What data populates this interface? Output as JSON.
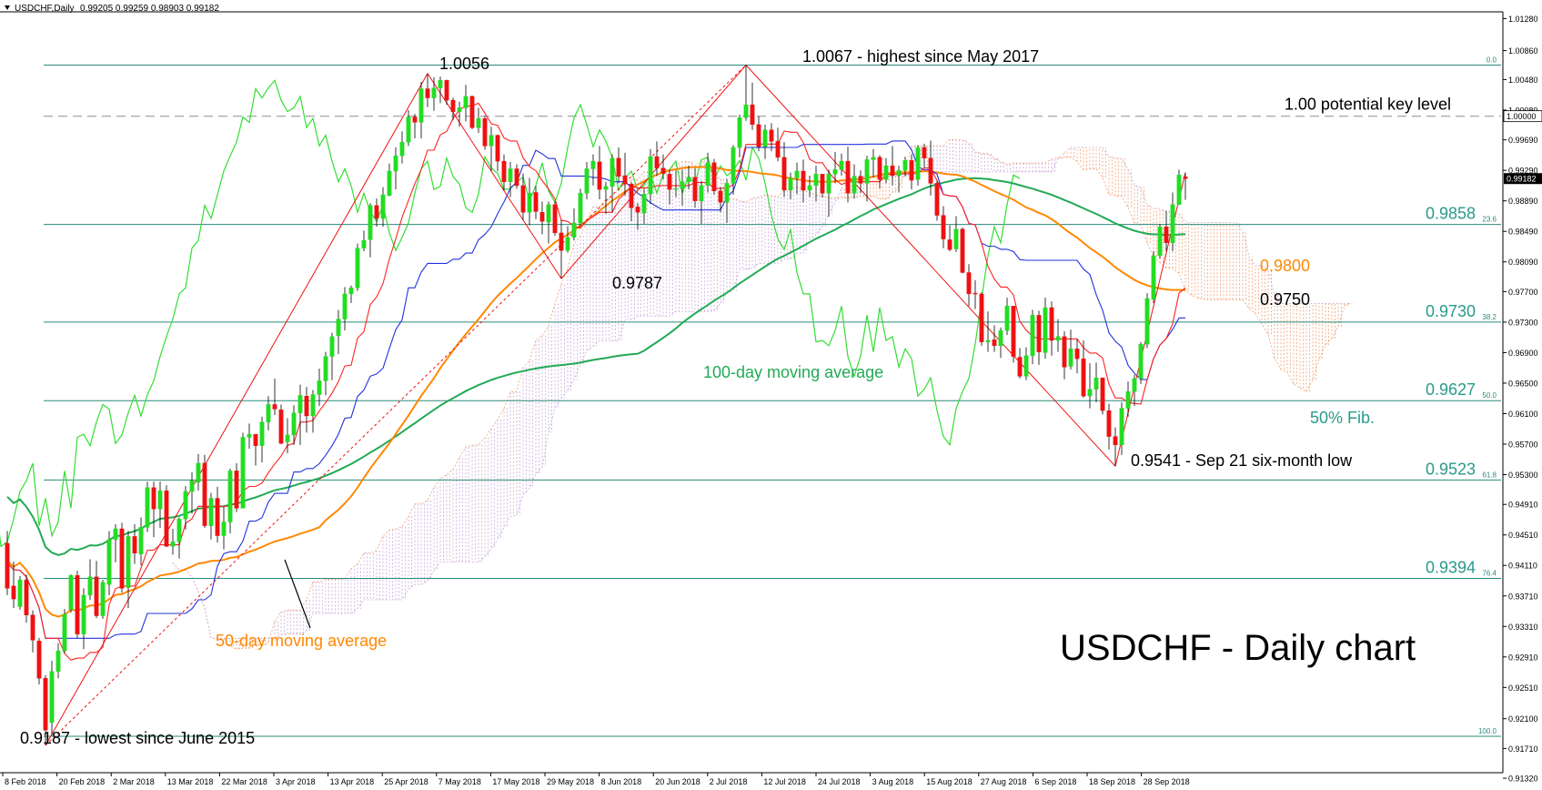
{
  "header": {
    "symbol": "USDCHF,Daily",
    "ohlc": "0.99205 0.99259 0.98903 0.99182",
    "arrow_icon": "triangle-down-icon"
  },
  "chart_data": {
    "type": "candlestick",
    "title": "USDCHF - Daily chart",
    "x_ticks": [
      "8 Feb 2018",
      "20 Feb 2018",
      "2 Mar 2018",
      "13 Mar 2018",
      "22 Mar 2018",
      "3 Apr 2018",
      "13 Apr 2018",
      "25 Apr 2018",
      "7 May 2018",
      "17 May 2018",
      "29 May 2018",
      "8 Jun 2018",
      "20 Jun 2018",
      "2 Jul 2018",
      "12 Jul 2018",
      "24 Jul 2018",
      "3 Aug 2018",
      "15 Aug 2018",
      "27 Aug 2018",
      "6 Sep 2018",
      "18 Sep 2018",
      "28 Sep 2018"
    ],
    "y_ticks": [
      "1.01280",
      "1.00860",
      "1.00480",
      "1.00080",
      "0.99690",
      "0.99290",
      "0.98890",
      "0.98490",
      "0.98090",
      "0.97700",
      "0.97300",
      "0.96900",
      "0.96500",
      "0.96100",
      "0.95700",
      "0.95300",
      "0.94910",
      "0.94510",
      "0.94110",
      "0.93710",
      "0.93310",
      "0.92910",
      "0.92510",
      "0.92100",
      "0.91710",
      "0.91320"
    ],
    "ylim": [
      0.9132,
      1.0168
    ],
    "current_price": "0.99182",
    "key_level_box": "1.00000",
    "colors": {
      "bull": "#22dd22",
      "bear": "#ee1111",
      "ma50": "#ff8800",
      "ma100": "#22aa55",
      "tenkan": "#ff2222",
      "kijun": "#2233dd",
      "chikou": "#33dd33",
      "fib": "#2a8a7a",
      "annotation_fib": "#2a9a8a"
    },
    "fib_levels": [
      {
        "pct": "0.0",
        "price": 1.0067,
        "label": ""
      },
      {
        "pct": "23.6",
        "price": 0.9858,
        "label": "0.9858"
      },
      {
        "pct": "38.2",
        "price": 0.973,
        "label": "0.9730"
      },
      {
        "pct": "50.0",
        "price": 0.9627,
        "label": "0.9627"
      },
      {
        "pct": "61.8",
        "price": 0.9523,
        "label": "0.9523"
      },
      {
        "pct": "76.4",
        "price": 0.9394,
        "label": "0.9394"
      },
      {
        "pct": "100.0",
        "price": 0.9187,
        "label": ""
      }
    ],
    "key_level": {
      "price": 1.0,
      "label": "1.00 potential key level"
    },
    "annotations": {
      "low_2015": "0.9187 - lowest since June 2015",
      "high_may": "1.0056",
      "high_2017": "1.0067 - highest since May 2017",
      "low_jun": "0.9787",
      "low_sep": "0.9541 -  Sep 21 six-month low",
      "ma50_value": "0.9800",
      "kijun_value": "0.9750",
      "fib50": "50% Fib.",
      "ma100_label": "100-day moving average",
      "ma50_label": "50-day moving average"
    },
    "candles": [
      [
        0.944,
        0.9456,
        0.9372,
        0.9381
      ],
      [
        0.9384,
        0.9416,
        0.9355,
        0.9367
      ],
      [
        0.9357,
        0.9397,
        0.9353,
        0.9392
      ],
      [
        0.9392,
        0.9399,
        0.9336,
        0.9346
      ],
      [
        0.9346,
        0.9352,
        0.9297,
        0.9313
      ],
      [
        0.9312,
        0.9316,
        0.9255,
        0.9263
      ],
      [
        0.9263,
        0.9267,
        0.9175,
        0.9195
      ],
      [
        0.9205,
        0.9286,
        0.9188,
        0.9272
      ],
      [
        0.9272,
        0.9309,
        0.9263,
        0.9299
      ],
      [
        0.9299,
        0.9354,
        0.9296,
        0.9347
      ],
      [
        0.9353,
        0.9399,
        0.9349,
        0.9398
      ],
      [
        0.9398,
        0.9404,
        0.9316,
        0.9321
      ],
      [
        0.9321,
        0.9381,
        0.9301,
        0.9372
      ],
      [
        0.9372,
        0.9419,
        0.9366,
        0.9396
      ],
      [
        0.9396,
        0.9417,
        0.9342,
        0.9345
      ],
      [
        0.9345,
        0.9392,
        0.9341,
        0.9389
      ],
      [
        0.9386,
        0.9456,
        0.9372,
        0.9445
      ],
      [
        0.9445,
        0.9465,
        0.9415,
        0.9459
      ],
      [
        0.9459,
        0.9467,
        0.9375,
        0.9381
      ],
      [
        0.9382,
        0.9456,
        0.9355,
        0.9449
      ],
      [
        0.9449,
        0.9465,
        0.9413,
        0.9427
      ],
      [
        0.9426,
        0.9474,
        0.9411,
        0.9461
      ],
      [
        0.9461,
        0.9521,
        0.9455,
        0.9513
      ],
      [
        0.9513,
        0.9521,
        0.9448,
        0.9485
      ],
      [
        0.9485,
        0.9521,
        0.946,
        0.9509
      ],
      [
        0.9509,
        0.9516,
        0.9435,
        0.9436
      ],
      [
        0.9436,
        0.9459,
        0.9425,
        0.9442
      ],
      [
        0.9442,
        0.9474,
        0.942,
        0.9472
      ],
      [
        0.9472,
        0.9515,
        0.9458,
        0.9508
      ],
      [
        0.9508,
        0.9533,
        0.9479,
        0.9522
      ],
      [
        0.952,
        0.9557,
        0.9509,
        0.9545
      ],
      [
        0.9545,
        0.9556,
        0.946,
        0.9463
      ],
      [
        0.9463,
        0.9506,
        0.9445,
        0.9499
      ],
      [
        0.9499,
        0.9514,
        0.9441,
        0.945
      ],
      [
        0.945,
        0.9488,
        0.9432,
        0.9468
      ],
      [
        0.9468,
        0.9538,
        0.9453,
        0.9535
      ],
      [
        0.9535,
        0.9545,
        0.9481,
        0.9486
      ],
      [
        0.9486,
        0.9585,
        0.9486,
        0.9579
      ],
      [
        0.9579,
        0.9597,
        0.9564,
        0.9583
      ],
      [
        0.9583,
        0.9583,
        0.9542,
        0.9568
      ],
      [
        0.9568,
        0.9606,
        0.9546,
        0.9599
      ],
      [
        0.9599,
        0.9633,
        0.9588,
        0.9622
      ],
      [
        0.9622,
        0.9656,
        0.9608,
        0.9616
      ],
      [
        0.9615,
        0.9622,
        0.957,
        0.9571
      ],
      [
        0.9573,
        0.9604,
        0.9558,
        0.9582
      ],
      [
        0.9582,
        0.9621,
        0.9569,
        0.9611
      ],
      [
        0.9611,
        0.9648,
        0.9569,
        0.9634
      ],
      [
        0.9633,
        0.9645,
        0.9585,
        0.9607
      ],
      [
        0.9607,
        0.9641,
        0.9585,
        0.9635
      ],
      [
        0.9635,
        0.9669,
        0.962,
        0.9653
      ],
      [
        0.9653,
        0.9691,
        0.9634,
        0.9685
      ],
      [
        0.9685,
        0.9716,
        0.9654,
        0.9711
      ],
      [
        0.9712,
        0.9746,
        0.9688,
        0.9734
      ],
      [
        0.9734,
        0.9776,
        0.9719,
        0.9767
      ],
      [
        0.9767,
        0.9778,
        0.9755,
        0.9775
      ],
      [
        0.9775,
        0.9833,
        0.9771,
        0.9827
      ],
      [
        0.9827,
        0.985,
        0.9823,
        0.9837
      ],
      [
        0.9838,
        0.9886,
        0.9815,
        0.9883
      ],
      [
        0.9883,
        0.9892,
        0.9855,
        0.9866
      ],
      [
        0.9866,
        0.9907,
        0.9855,
        0.9897
      ],
      [
        0.9896,
        0.9938,
        0.9895,
        0.9928
      ],
      [
        0.9928,
        0.9959,
        0.9904,
        0.9948
      ],
      [
        0.9948,
        0.998,
        0.9938,
        0.9966
      ],
      [
        0.9966,
        1.0008,
        0.9961,
        0.9999
      ],
      [
        0.9999,
        1.0003,
        0.9971,
        0.9992
      ],
      [
        0.9992,
        1.0045,
        0.9971,
        1.0036
      ],
      [
        1.0036,
        1.0056,
        1.0012,
        1.0024
      ],
      [
        1.0024,
        1.0051,
        1.0007,
        1.0037
      ],
      [
        1.0037,
        1.0052,
        1.0017,
        1.0047
      ],
      [
        1.0047,
        1.0048,
        1.0015,
        1.0021
      ],
      [
        1.0021,
        1.0024,
        0.9995,
        1.0006
      ],
      [
        1.0006,
        1.0019,
        0.9986,
        1.0011
      ],
      [
        1.0011,
        1.0041,
        0.9993,
        1.0026
      ],
      [
        1.0026,
        1.0027,
        0.9983,
        0.9985
      ],
      [
        0.9985,
        1.0011,
        0.9978,
        0.9997
      ],
      [
        0.9997,
        1.0,
        0.9956,
        0.9961
      ],
      [
        0.9961,
        0.9986,
        0.9928,
        0.9975
      ],
      [
        0.9975,
        0.9976,
        0.9928,
        0.9941
      ],
      [
        0.9941,
        0.995,
        0.9902,
        0.9914
      ],
      [
        0.9914,
        0.994,
        0.9894,
        0.9931
      ],
      [
        0.9931,
        0.9937,
        0.9905,
        0.9909
      ],
      [
        0.9909,
        0.9925,
        0.9864,
        0.9874
      ],
      [
        0.9874,
        0.9919,
        0.9857,
        0.9899
      ],
      [
        0.99,
        0.9908,
        0.9865,
        0.9875
      ],
      [
        0.9874,
        0.9888,
        0.9845,
        0.9862
      ],
      [
        0.9861,
        0.9888,
        0.9833,
        0.9884
      ],
      [
        0.9884,
        0.9888,
        0.9843,
        0.9847
      ],
      [
        0.9847,
        0.9864,
        0.9787,
        0.9824
      ],
      [
        0.9824,
        0.9856,
        0.9821,
        0.9841
      ],
      [
        0.9841,
        0.9879,
        0.9837,
        0.986
      ],
      [
        0.986,
        0.9905,
        0.9855,
        0.9899
      ],
      [
        0.9899,
        0.994,
        0.9891,
        0.9931
      ],
      [
        0.9931,
        0.995,
        0.9909,
        0.9941
      ],
      [
        0.994,
        0.9961,
        0.9891,
        0.9904
      ],
      [
        0.9904,
        0.9914,
        0.9872,
        0.9908
      ],
      [
        0.9908,
        0.995,
        0.9874,
        0.9945
      ],
      [
        0.9945,
        0.9959,
        0.9912,
        0.9921
      ],
      [
        0.9922,
        0.9952,
        0.9896,
        0.9911
      ],
      [
        0.9911,
        0.9914,
        0.9862,
        0.988
      ],
      [
        0.9881,
        0.9886,
        0.9851,
        0.9874
      ],
      [
        0.9873,
        0.9905,
        0.9859,
        0.9898
      ],
      [
        0.9898,
        0.9957,
        0.9885,
        0.9947
      ],
      [
        0.9947,
        0.9967,
        0.9922,
        0.9932
      ],
      [
        0.9932,
        0.995,
        0.9917,
        0.9925
      ],
      [
        0.9924,
        0.993,
        0.9884,
        0.9904
      ],
      [
        0.9904,
        0.9929,
        0.9894,
        0.9905
      ],
      [
        0.9905,
        0.993,
        0.9883,
        0.9914
      ],
      [
        0.9914,
        0.9935,
        0.9904,
        0.992
      ],
      [
        0.992,
        0.9932,
        0.988,
        0.9889
      ],
      [
        0.9889,
        0.9915,
        0.9859,
        0.9909
      ],
      [
        0.9909,
        0.9952,
        0.99,
        0.9939
      ],
      [
        0.9939,
        0.9944,
        0.9897,
        0.9902
      ],
      [
        0.9902,
        0.9907,
        0.9874,
        0.9887
      ],
      [
        0.9887,
        0.9918,
        0.986,
        0.9912
      ],
      [
        0.9912,
        0.9962,
        0.9897,
        0.9959
      ],
      [
        0.9959,
        1.0002,
        0.9946,
        0.9998
      ],
      [
        0.9998,
        1.0067,
        0.9994,
        1.0015
      ],
      [
        1.0015,
        1.0044,
        0.9982,
        0.9989
      ],
      [
        0.9989,
        1.0,
        0.9954,
        0.996
      ],
      [
        0.996,
        0.9989,
        0.9944,
        0.9982
      ],
      [
        0.9982,
        0.9991,
        0.9954,
        0.9967
      ],
      [
        0.9967,
        0.9985,
        0.9941,
        0.9946
      ],
      [
        0.9946,
        0.9966,
        0.9894,
        0.9903
      ],
      [
        0.9903,
        0.9926,
        0.9891,
        0.9919
      ],
      [
        0.9919,
        0.9939,
        0.9898,
        0.9928
      ],
      [
        0.9928,
        0.9943,
        0.9887,
        0.9903
      ],
      [
        0.9903,
        0.9922,
        0.9894,
        0.9909
      ],
      [
        0.9909,
        0.9935,
        0.9888,
        0.9924
      ],
      [
        0.9924,
        0.9924,
        0.9893,
        0.9899
      ],
      [
        0.9899,
        0.993,
        0.9868,
        0.9924
      ],
      [
        0.9924,
        0.9953,
        0.9912,
        0.993
      ],
      [
        0.993,
        0.9951,
        0.9922,
        0.9941
      ],
      [
        0.9941,
        0.996,
        0.9887,
        0.9899
      ],
      [
        0.9899,
        0.9937,
        0.9892,
        0.9921
      ],
      [
        0.9921,
        0.9929,
        0.9899,
        0.9912
      ],
      [
        0.9912,
        0.9948,
        0.9888,
        0.9943
      ],
      [
        0.9943,
        0.9957,
        0.992,
        0.9946
      ],
      [
        0.9946,
        0.9949,
        0.9905,
        0.9917
      ],
      [
        0.9917,
        0.9945,
        0.9912,
        0.9935
      ],
      [
        0.9935,
        0.9961,
        0.9909,
        0.9922
      ],
      [
        0.9922,
        0.9935,
        0.99,
        0.9929
      ],
      [
        0.9929,
        0.9947,
        0.9921,
        0.9942
      ],
      [
        0.9942,
        0.995,
        0.9904,
        0.9916
      ],
      [
        0.9917,
        0.9962,
        0.9909,
        0.9959
      ],
      [
        0.9959,
        0.9964,
        0.9932,
        0.9945
      ],
      [
        0.9945,
        0.9968,
        0.9896,
        0.9912
      ],
      [
        0.9912,
        0.9915,
        0.9863,
        0.987
      ],
      [
        0.987,
        0.9882,
        0.9827,
        0.9839
      ],
      [
        0.9838,
        0.9857,
        0.9823,
        0.9825
      ],
      [
        0.9826,
        0.9869,
        0.9822,
        0.9852
      ],
      [
        0.9852,
        0.9854,
        0.9794,
        0.9795
      ],
      [
        0.9795,
        0.9806,
        0.9751,
        0.9767
      ],
      [
        0.9768,
        0.9785,
        0.9747,
        0.9767
      ],
      [
        0.9767,
        0.9769,
        0.9699,
        0.9704
      ],
      [
        0.9704,
        0.9744,
        0.9691,
        0.9706
      ],
      [
        0.9707,
        0.9726,
        0.9691,
        0.9699
      ],
      [
        0.9699,
        0.9723,
        0.9683,
        0.9719
      ],
      [
        0.9719,
        0.9762,
        0.9713,
        0.9751
      ],
      [
        0.9751,
        0.9751,
        0.9677,
        0.9685
      ],
      [
        0.9684,
        0.9696,
        0.9656,
        0.9659
      ],
      [
        0.9659,
        0.9697,
        0.9654,
        0.9686
      ],
      [
        0.9686,
        0.9746,
        0.9675,
        0.9739
      ],
      [
        0.9739,
        0.9745,
        0.9674,
        0.9691
      ],
      [
        0.969,
        0.9762,
        0.9682,
        0.9749
      ],
      [
        0.9749,
        0.9757,
        0.9686,
        0.9706
      ],
      [
        0.9706,
        0.9734,
        0.9691,
        0.9711
      ],
      [
        0.9711,
        0.9718,
        0.9655,
        0.9671
      ],
      [
        0.9672,
        0.972,
        0.9668,
        0.9695
      ],
      [
        0.9695,
        0.9708,
        0.9663,
        0.9682
      ],
      [
        0.9682,
        0.9706,
        0.9631,
        0.9633
      ],
      [
        0.9633,
        0.9676,
        0.9617,
        0.9642
      ],
      [
        0.9642,
        0.9677,
        0.9625,
        0.9657
      ],
      [
        0.9657,
        0.9657,
        0.9609,
        0.9614
      ],
      [
        0.9614,
        0.9623,
        0.9563,
        0.958
      ],
      [
        0.958,
        0.9592,
        0.9541,
        0.9569
      ],
      [
        0.9569,
        0.9625,
        0.9556,
        0.9617
      ],
      [
        0.9617,
        0.9652,
        0.9606,
        0.9639
      ],
      [
        0.9639,
        0.9661,
        0.962,
        0.9656
      ],
      [
        0.9656,
        0.9704,
        0.9649,
        0.9701
      ],
      [
        0.9701,
        0.9768,
        0.9696,
        0.9761
      ],
      [
        0.976,
        0.9823,
        0.9755,
        0.9817
      ],
      [
        0.9817,
        0.9859,
        0.9813,
        0.9855
      ],
      [
        0.9855,
        0.9876,
        0.9823,
        0.9834
      ],
      [
        0.9834,
        0.99,
        0.9823,
        0.9884
      ],
      [
        0.9884,
        0.993,
        0.9884,
        0.9923
      ],
      [
        0.99205,
        0.99259,
        0.98903,
        0.99182
      ]
    ]
  }
}
